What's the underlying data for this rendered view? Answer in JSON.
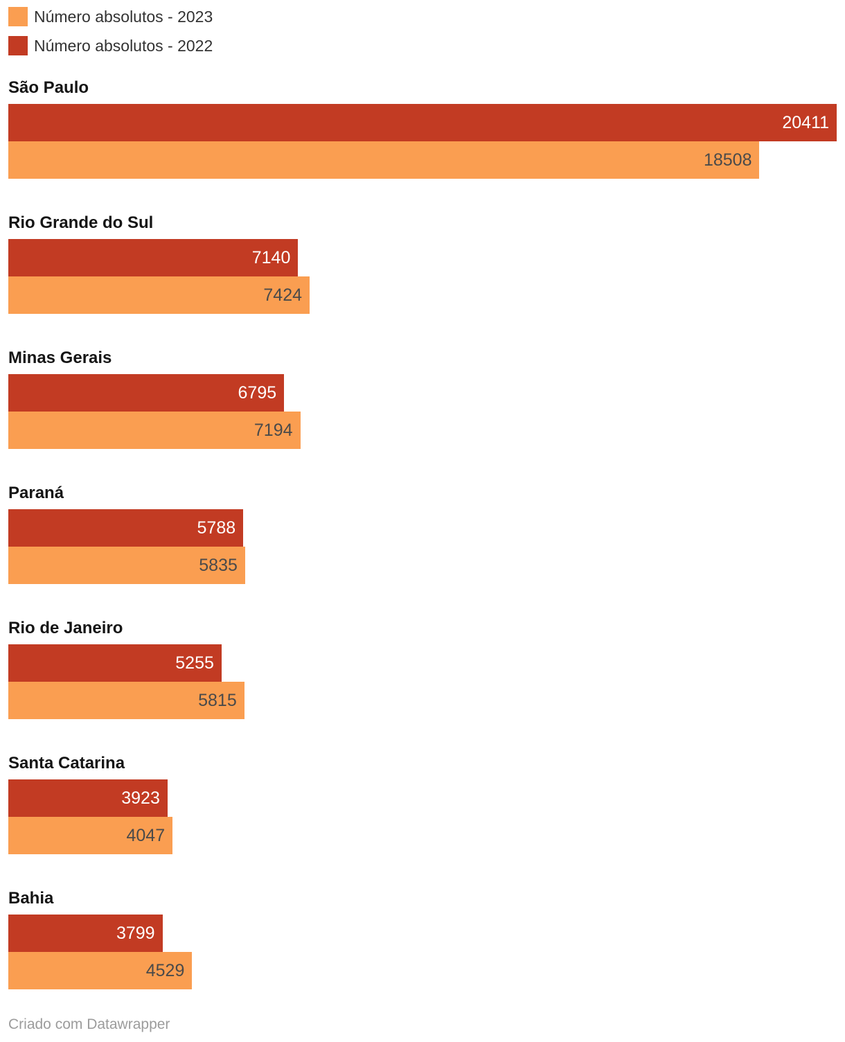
{
  "legend": {
    "items": [
      {
        "label": "Número absolutos - 2023",
        "color": "#fa9e51"
      },
      {
        "label": "Número absolutos - 2022",
        "color": "#c23b23"
      }
    ]
  },
  "chart_data": {
    "type": "bar",
    "orientation": "horizontal",
    "title": "",
    "xlabel": "",
    "ylabel": "",
    "xlim": [
      0,
      20411
    ],
    "grid": false,
    "legend_position": "top",
    "value_labels": "inside-end",
    "categories": [
      "São Paulo",
      "Rio Grande do Sul",
      "Minas Gerais",
      "Paraná",
      "Rio de Janeiro",
      "Santa Catarina",
      "Bahia"
    ],
    "series": [
      {
        "name": "Número absolutos - 2022",
        "key": "2022",
        "color": "#c23b23",
        "value_label_color": "#ffffff",
        "values": [
          20411,
          7140,
          6795,
          5788,
          5255,
          3923,
          3799
        ]
      },
      {
        "name": "Número absolutos - 2023",
        "key": "2023",
        "color": "#fa9e51",
        "value_label_color": "#4a4a4a",
        "values": [
          18508,
          7424,
          7194,
          5835,
          5815,
          4047,
          4529
        ]
      }
    ]
  },
  "footer": {
    "attribution": "Criado com Datawrapper"
  },
  "colors": {
    "series_2022": "#c23b23",
    "series_2023": "#fa9e51",
    "category_label": "#151515",
    "legend_text": "#333333",
    "attribution_text": "#9c9c9c",
    "background": "#ffffff"
  }
}
